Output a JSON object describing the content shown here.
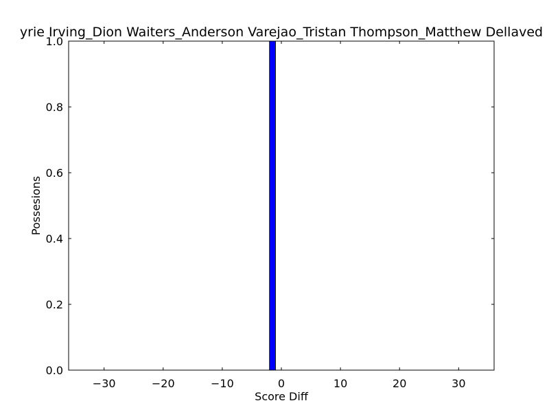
{
  "chart_data": {
    "type": "bar",
    "title": "yrie Irving_Dion Waiters_Anderson Varejao_Tristan Thompson_Matthew Dellaved",
    "xlabel": "Score Diff",
    "ylabel": "Possesions",
    "xlim": [
      -36,
      36
    ],
    "ylim": [
      0,
      1
    ],
    "xticks": [
      -30,
      -20,
      -10,
      0,
      10,
      20,
      30
    ],
    "xtick_labels": [
      "−30",
      "−20",
      "−10",
      "0",
      "10",
      "20",
      "30"
    ],
    "yticks": [
      0,
      0.2,
      0.4,
      0.6,
      0.8,
      1.0
    ],
    "ytick_labels": [
      "0.0",
      "0.2",
      "0.4",
      "0.6",
      "0.8",
      "1.0"
    ],
    "bars": [
      {
        "x_start": -2,
        "x_end": -1,
        "value": 1.0
      }
    ],
    "bar_color": "#0000ff",
    "grid": false,
    "legend": "none"
  }
}
